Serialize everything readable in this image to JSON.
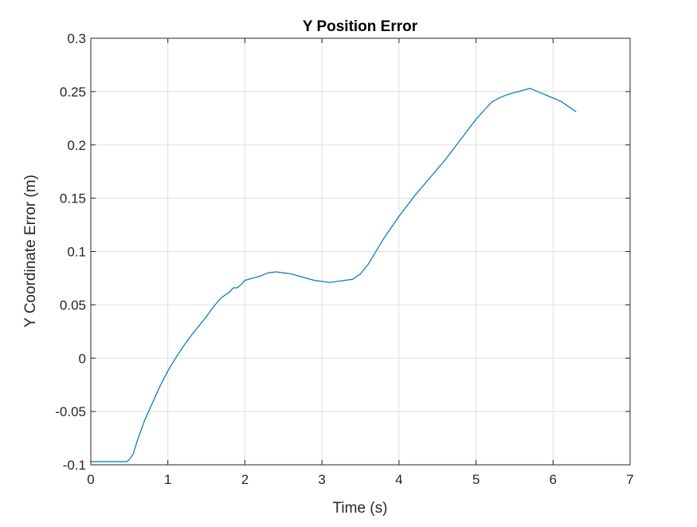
{
  "chart_data": {
    "type": "line",
    "title": "Y Position Error",
    "xlabel": "Time (s)",
    "ylabel": "Y Coordinate Error (m)",
    "xlim": [
      0,
      7
    ],
    "ylim": [
      -0.1,
      0.3
    ],
    "xticks": [
      0,
      1,
      2,
      3,
      4,
      5,
      6,
      7
    ],
    "xtick_labels": [
      "0",
      "1",
      "2",
      "3",
      "4",
      "5",
      "6",
      "7"
    ],
    "yticks": [
      -0.1,
      -0.05,
      0,
      0.05,
      0.1,
      0.15,
      0.2,
      0.25,
      0.3
    ],
    "ytick_labels": [
      "-0.1",
      "-0.05",
      "0",
      "0.05",
      "0.1",
      "0.15",
      "0.2",
      "0.25",
      "0.3"
    ],
    "grid": true,
    "series": [
      {
        "color": "#0072BD",
        "x": [
          0,
          0.47,
          0.5,
          0.55,
          0.6,
          0.7,
          0.8,
          0.9,
          1.0,
          1.1,
          1.2,
          1.3,
          1.4,
          1.5,
          1.6,
          1.7,
          1.8,
          1.85,
          1.9,
          1.95,
          2.0,
          2.1,
          2.2,
          2.3,
          2.4,
          2.5,
          2.6,
          2.7,
          2.8,
          2.9,
          3.0,
          3.1,
          3.2,
          3.3,
          3.4,
          3.5,
          3.6,
          3.7,
          3.8,
          4.0,
          4.2,
          4.4,
          4.6,
          4.8,
          5.0,
          5.2,
          5.3,
          5.4,
          5.5,
          5.6,
          5.7,
          5.8,
          5.9,
          6.0,
          6.1,
          6.2,
          6.3
        ],
        "y": [
          -0.097,
          -0.097,
          -0.095,
          -0.09,
          -0.078,
          -0.058,
          -0.042,
          -0.026,
          -0.012,
          0.0,
          0.011,
          0.021,
          0.03,
          0.039,
          0.049,
          0.057,
          0.062,
          0.066,
          0.066,
          0.069,
          0.073,
          0.075,
          0.077,
          0.08,
          0.081,
          0.08,
          0.079,
          0.077,
          0.075,
          0.073,
          0.072,
          0.071,
          0.072,
          0.073,
          0.074,
          0.079,
          0.088,
          0.1,
          0.112,
          0.133,
          0.152,
          0.169,
          0.186,
          0.205,
          0.224,
          0.24,
          0.244,
          0.247,
          0.249,
          0.251,
          0.253,
          0.25,
          0.247,
          0.244,
          0.241,
          0.236,
          0.231
        ]
      }
    ]
  }
}
